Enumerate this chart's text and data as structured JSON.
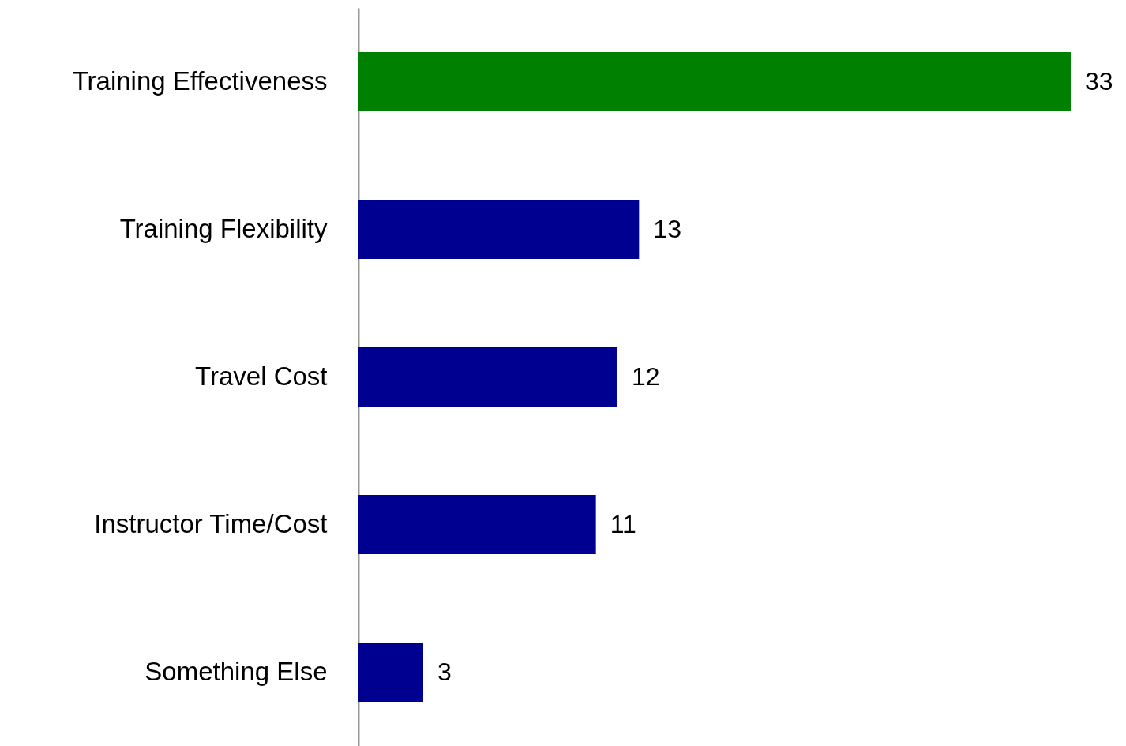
{
  "chart_data": {
    "type": "bar",
    "orientation": "horizontal",
    "data_labels": true,
    "legend": false,
    "categories": [
      "Training Effectiveness",
      "Training Flexibility",
      "Travel Cost",
      "Instructor Time/Cost",
      "Something Else"
    ],
    "values": [
      33,
      13,
      12,
      11,
      3
    ],
    "colors": [
      "#008000",
      "#000090",
      "#000090",
      "#000090",
      "#000090"
    ]
  }
}
